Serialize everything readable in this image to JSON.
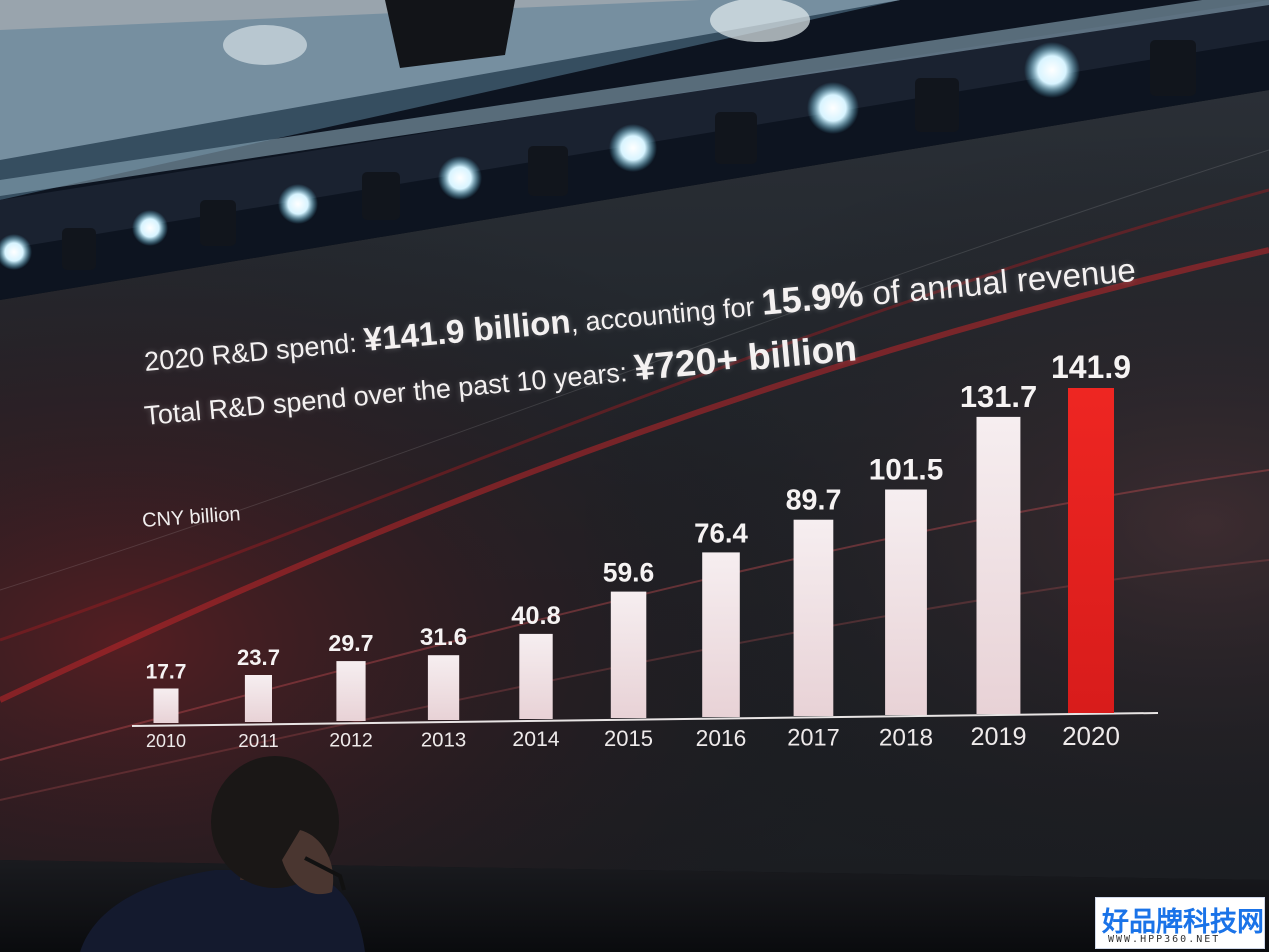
{
  "headline": {
    "line1_prefix": "2020 R&D spend: ",
    "line1_amount": "¥141.9 billion",
    "line1_middle": ", accounting for ",
    "line1_percent": "15.9%",
    "line1_suffix": " of annual revenue",
    "line2_prefix": "Total R&D spend over the past 10 years: ",
    "line2_amount": "¥720+ billion"
  },
  "unit_label": "CNY billion",
  "watermark": {
    "main": "好品牌科技网",
    "sub": "WWW.HPP360.NET"
  },
  "colors": {
    "regular_bar": "#f2e4e6",
    "highlight_bar": "#e8211f",
    "text": "#f4f1f1",
    "background": "#15171c"
  },
  "chart_data": {
    "type": "bar",
    "categories": [
      "2010",
      "2011",
      "2012",
      "2013",
      "2014",
      "2015",
      "2016",
      "2017",
      "2018",
      "2019",
      "2020"
    ],
    "values": [
      17.7,
      23.7,
      29.7,
      31.6,
      40.8,
      59.6,
      76.4,
      89.7,
      101.5,
      131.7,
      141.9
    ],
    "labels": [
      "17.7",
      "23.7",
      "29.7",
      "31.6",
      "40.8",
      "59.6",
      "76.4",
      "89.7",
      "101.5",
      "131.7",
      "141.9"
    ],
    "highlight_category": "2020",
    "ylabel": "CNY billion",
    "ylim": [
      0,
      150
    ],
    "grid": false,
    "legend": "none"
  }
}
